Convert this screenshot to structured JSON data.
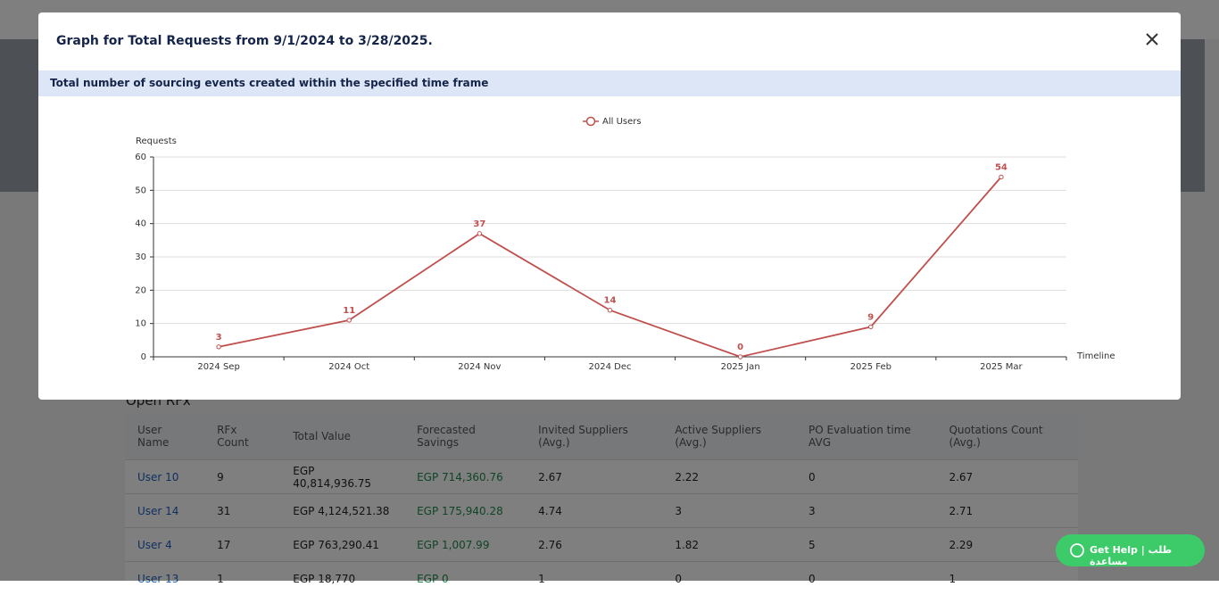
{
  "modal": {
    "title": "Graph for Total Requests from 9/1/2024 to 3/28/2025.",
    "subtitle": "Total number of sourcing events created within the specified time frame"
  },
  "chart_data": {
    "type": "line",
    "y_label": "Requests",
    "x_label": "Timeline",
    "categories": [
      "2024 Sep",
      "2024 Oct",
      "2024 Nov",
      "2024 Dec",
      "2025 Jan",
      "2025 Feb",
      "2025 Mar"
    ],
    "series": [
      {
        "name": "All Users",
        "color": "#c0504d",
        "values": [
          3,
          11,
          37,
          14,
          0,
          9,
          54
        ]
      }
    ],
    "ylim": [
      0,
      60
    ],
    "yticks": [
      0,
      10,
      20,
      30,
      40,
      50,
      60
    ],
    "grid": true,
    "legend": "top"
  },
  "background": {
    "section_title": "Open RFx",
    "table": {
      "headers": [
        "User Name",
        "RFx Count",
        "Total Value",
        "Forecasted Savings",
        "Invited Suppliers (Avg.)",
        "Active Suppliers (Avg.)",
        "PO Evaluation time AVG",
        "Quotations Count (Avg.)"
      ],
      "rows": [
        [
          "User 10",
          "9",
          "EGP 40,814,936.75",
          "EGP 714,360.76",
          "2.67",
          "2.22",
          "0",
          "2.67"
        ],
        [
          "User 14",
          "31",
          "EGP 4,124,521.38",
          "EGP 175,940.28",
          "4.74",
          "3",
          "3",
          "2.71"
        ],
        [
          "User 4",
          "17",
          "EGP 763,290.41",
          "EGP 1,007.99",
          "2.76",
          "1.82",
          "5",
          "2.29"
        ],
        [
          "User 13",
          "1",
          "EGP 18,770",
          "EGP 0",
          "1",
          "0",
          "0",
          "1"
        ]
      ]
    }
  },
  "help_button": "Get Help | طلب مساعدة"
}
